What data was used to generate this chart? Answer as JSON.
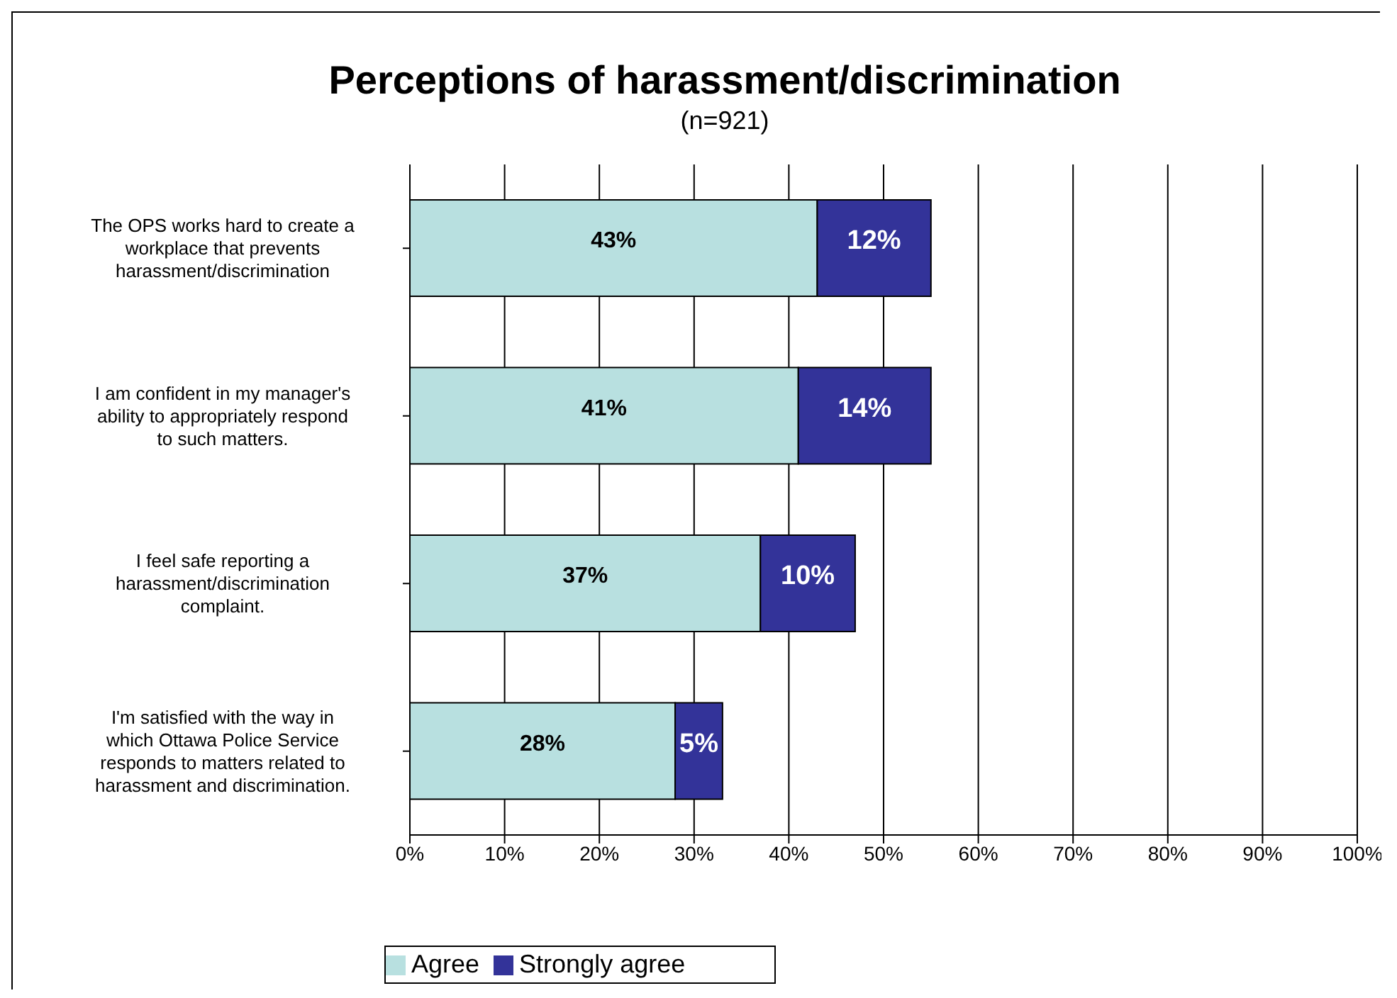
{
  "chart_data": {
    "type": "bar",
    "orientation": "horizontal",
    "stacked": true,
    "title": "Perceptions of harassment/discrimination",
    "subtitle": "(n=921)",
    "categories": [
      "The OPS works hard to create a workplace that prevents harassment/discrimination",
      "I am confident in my manager's ability to appropriately respond to such matters.",
      "I feel safe reporting a harassment/discrimination complaint.",
      "I'm satisfied with the way in which Ottawa Police Service responds to matters related to harassment and discrimination."
    ],
    "series": [
      {
        "name": "Agree",
        "color": "#b8e0e0",
        "values": [
          43,
          41,
          37,
          28
        ],
        "value_labels": [
          "43%",
          "41%",
          "37%",
          "28%"
        ]
      },
      {
        "name": "Strongly agree",
        "color": "#333399",
        "values": [
          12,
          14,
          10,
          5
        ],
        "value_labels": [
          "12%",
          "14%",
          "10%",
          "5%"
        ]
      }
    ],
    "xlim": [
      0,
      100
    ],
    "xticks": [
      {
        "value": 0,
        "label": "0%"
      },
      {
        "value": 10,
        "label": "10%"
      },
      {
        "value": 20,
        "label": "20%"
      },
      {
        "value": 30,
        "label": "30%"
      },
      {
        "value": 40,
        "label": "40%"
      },
      {
        "value": 50,
        "label": "50%"
      },
      {
        "value": 60,
        "label": "60%"
      },
      {
        "value": 70,
        "label": "70%"
      },
      {
        "value": 80,
        "label": "80%"
      },
      {
        "value": 90,
        "label": "90%"
      },
      {
        "value": 100,
        "label": "100%"
      }
    ],
    "grid": "x",
    "legend": "bottom"
  }
}
